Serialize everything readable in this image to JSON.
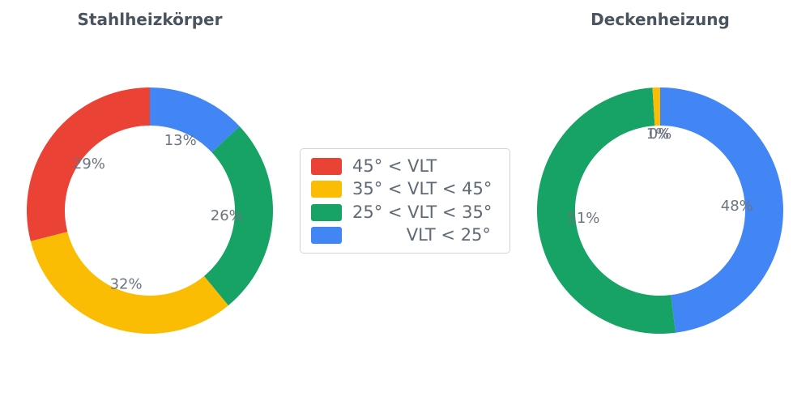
{
  "chart_data": {
    "type": "pie",
    "subtype": "donut",
    "start_angle_deg": 0,
    "direction": "clockwise",
    "legend_position": "center",
    "colors": {
      "red": "#EA4335",
      "yellow": "#FBBC04",
      "green": "#17A266",
      "blue": "#4285F4"
    },
    "charts": [
      {
        "title": "Stahlheizkörper",
        "slices": [
          {
            "name": "VLT < 25°",
            "value": 13,
            "pct_label": "13%",
            "color": "#4285F4"
          },
          {
            "name": "25° < VLT < 35°",
            "value": 26,
            "pct_label": "26%",
            "color": "#17A266"
          },
          {
            "name": "35° < VLT < 45°",
            "value": 32,
            "pct_label": "32%",
            "color": "#FBBC04"
          },
          {
            "name": "45° < VLT",
            "value": 29,
            "pct_label": "29%",
            "color": "#EA4335"
          }
        ]
      },
      {
        "title": "Deckenheizung",
        "slices": [
          {
            "name": "VLT < 25°",
            "value": 48,
            "pct_label": "48%",
            "color": "#4285F4"
          },
          {
            "name": "25° < VLT < 35°",
            "value": 51,
            "pct_label": "51%",
            "color": "#17A266"
          },
          {
            "name": "35° < VLT < 45°",
            "value": 1,
            "pct_label": "1%",
            "color": "#FBBC04"
          },
          {
            "name": "45° < VLT",
            "value": 0,
            "pct_label": "0%",
            "color": "#EA4335"
          }
        ]
      }
    ]
  },
  "legend": {
    "items": [
      {
        "label": "45° < VLT",
        "color": "#EA4335"
      },
      {
        "label": "35° < VLT < 45°",
        "color": "#FBBC04"
      },
      {
        "label": "25° < VLT < 35°",
        "color": "#17A266"
      },
      {
        "label": "          VLT < 25°",
        "color": "#4285F4"
      }
    ]
  }
}
